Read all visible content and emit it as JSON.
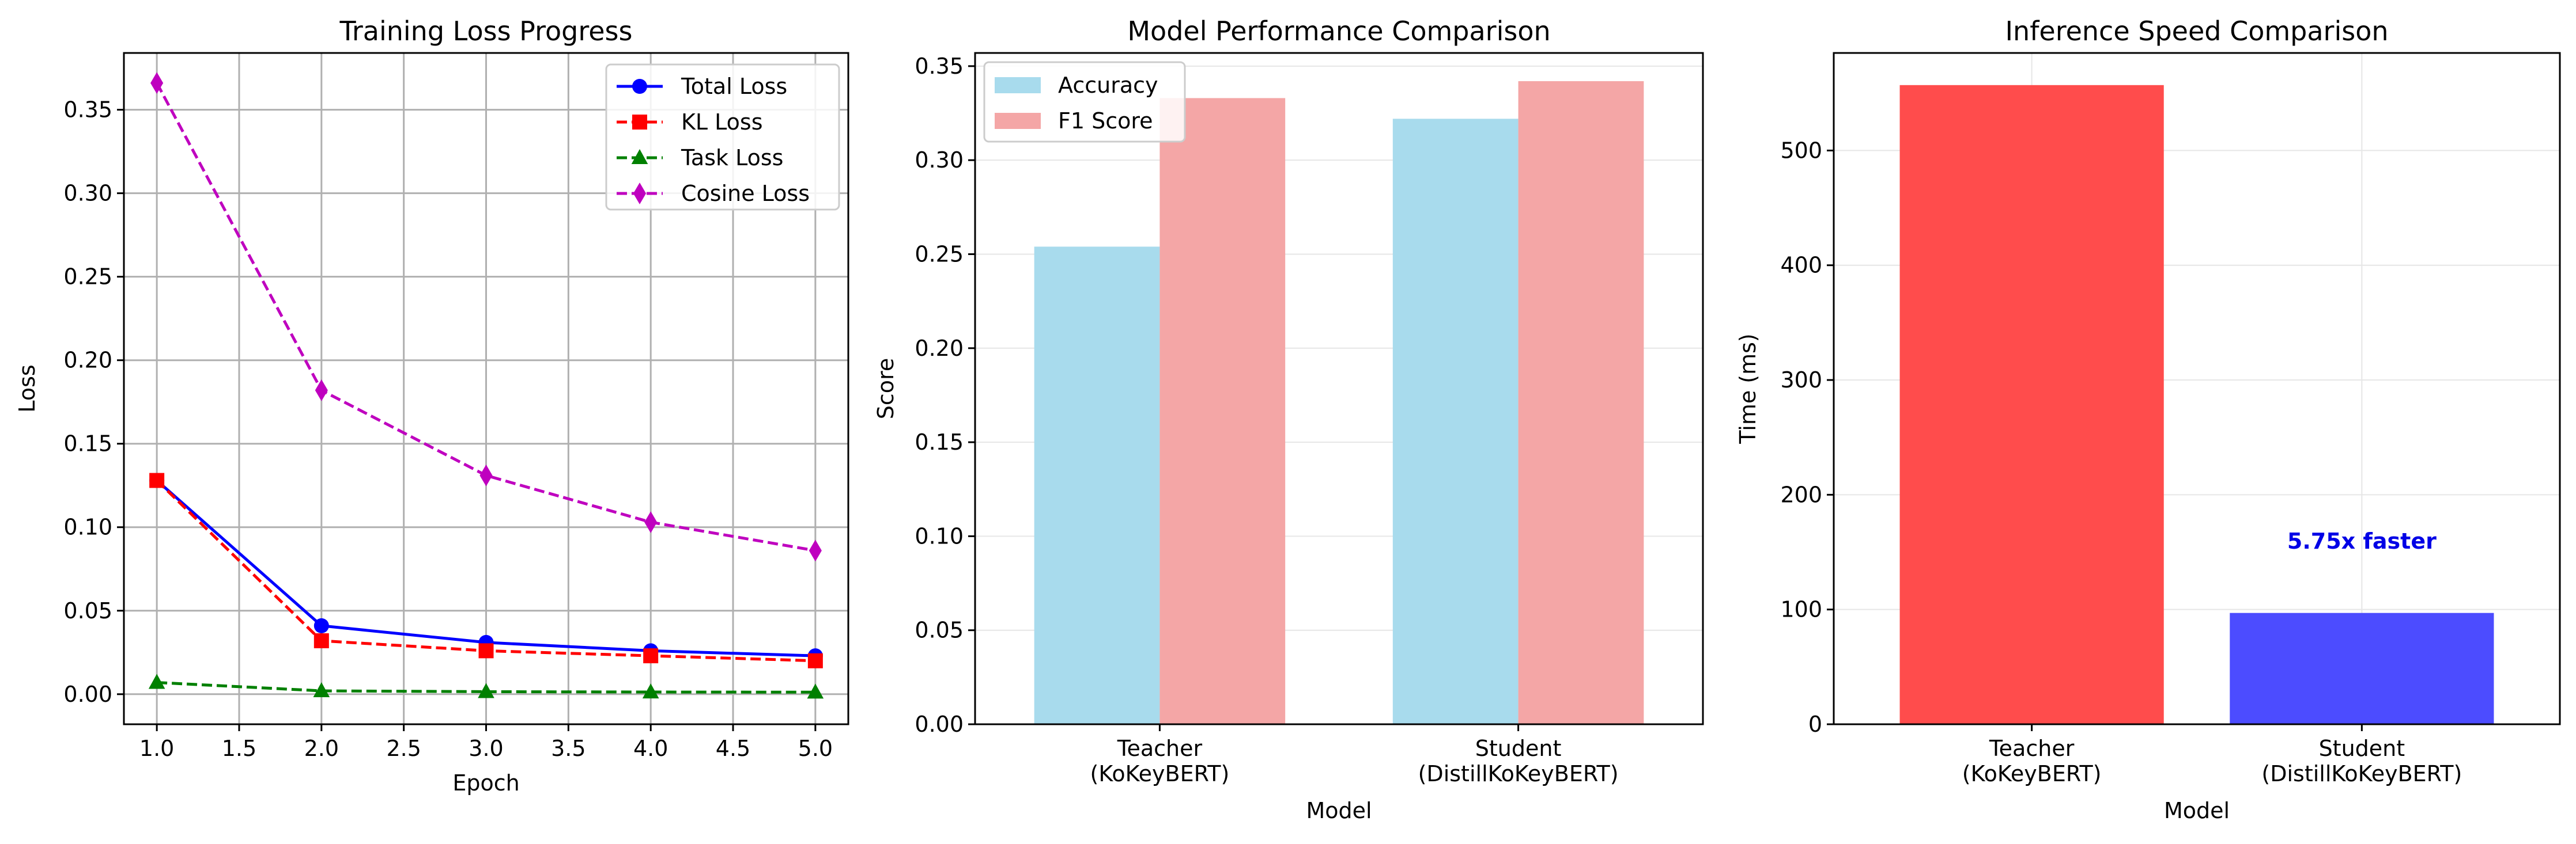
{
  "chart_data": [
    {
      "type": "line",
      "title": "Training Loss Progress",
      "xlabel": "Epoch",
      "ylabel": "Loss",
      "x": [
        1,
        2,
        3,
        4,
        5
      ],
      "xlim": [
        0.8,
        5.2
      ],
      "ylim": [
        -0.018,
        0.384
      ],
      "xticks": [
        1.0,
        1.5,
        2.0,
        2.5,
        3.0,
        3.5,
        4.0,
        4.5,
        5.0
      ],
      "xtick_labels": [
        "1.0",
        "1.5",
        "2.0",
        "2.5",
        "3.0",
        "3.5",
        "4.0",
        "4.5",
        "5.0"
      ],
      "yticks": [
        0.0,
        0.05,
        0.1,
        0.15,
        0.2,
        0.25,
        0.3,
        0.35
      ],
      "ytick_labels": [
        "0.00",
        "0.05",
        "0.10",
        "0.15",
        "0.20",
        "0.25",
        "0.30",
        "0.35"
      ],
      "grid": true,
      "legend": "top-right",
      "series": [
        {
          "name": "Total Loss",
          "values": [
            0.128,
            0.041,
            0.031,
            0.026,
            0.023
          ],
          "color": "#0000ff",
          "dash": "solid",
          "marker": "circle"
        },
        {
          "name": "KL Loss",
          "values": [
            0.128,
            0.032,
            0.026,
            0.023,
            0.02
          ],
          "color": "#ff0000",
          "dash": "dashed",
          "marker": "square"
        },
        {
          "name": "Task Loss",
          "values": [
            0.007,
            0.002,
            0.0015,
            0.0013,
            0.0012
          ],
          "color": "#008000",
          "dash": "dashed",
          "marker": "triangle"
        },
        {
          "name": "Cosine Loss",
          "values": [
            0.366,
            0.182,
            0.131,
            0.103,
            0.086
          ],
          "color": "#bf00bf",
          "dash": "dashed",
          "marker": "diamond"
        }
      ]
    },
    {
      "type": "bar",
      "title": "Model Performance Comparison",
      "xlabel": "Model",
      "ylabel": "Score",
      "categories": [
        [
          "Teacher",
          "(KoKeyBERT)"
        ],
        [
          "Student",
          "(DistillKoKeyBERT)"
        ]
      ],
      "ylim": [
        0,
        0.357
      ],
      "yticks": [
        0.0,
        0.05,
        0.1,
        0.15,
        0.2,
        0.25,
        0.3,
        0.35
      ],
      "ytick_labels": [
        "0.00",
        "0.05",
        "0.10",
        "0.15",
        "0.20",
        "0.25",
        "0.30",
        "0.35"
      ],
      "grid": true,
      "legend": "top-left",
      "series": [
        {
          "name": "Accuracy",
          "values": [
            0.254,
            0.322
          ],
          "color": "#a8dbed"
        },
        {
          "name": "F1 Score",
          "values": [
            0.333,
            0.342
          ],
          "color": "#f4a6a6"
        }
      ]
    },
    {
      "type": "bar",
      "title": "Inference Speed Comparison",
      "xlabel": "Model",
      "ylabel": "Time (ms)",
      "categories": [
        [
          "Teacher",
          "(KoKeyBERT)"
        ],
        [
          "Student",
          "(DistillKoKeyBERT)"
        ]
      ],
      "values": [
        557,
        97
      ],
      "colors": [
        "#ff4c4c",
        "#4c4cff"
      ],
      "ylim": [
        0,
        585
      ],
      "yticks": [
        0,
        100,
        200,
        300,
        400,
        500
      ],
      "ytick_labels": [
        "0",
        "100",
        "200",
        "300",
        "400",
        "500"
      ],
      "grid": true,
      "annotation": {
        "text": "5.75x faster",
        "x_index": 1,
        "y": 160,
        "color": "#0000e6"
      }
    }
  ]
}
